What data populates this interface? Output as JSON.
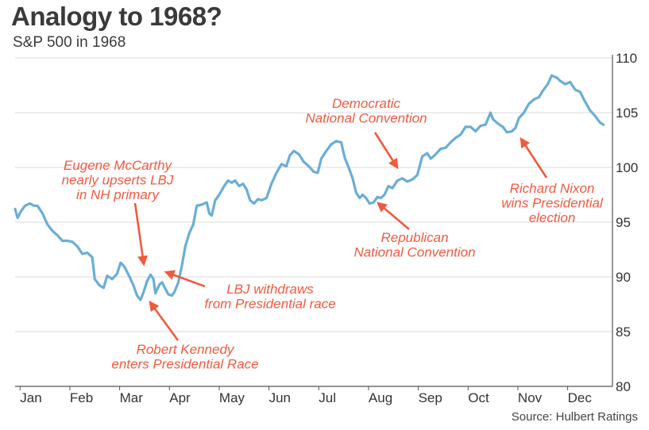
{
  "title": "Analogy to 1968?",
  "subtitle": "S&P 500 in 1968",
  "source": "Source: Hulbert Ratings",
  "colors": {
    "line": "#6aaed6",
    "annotation": "#f15a3d",
    "grid": "#d9d9d9"
  },
  "chart_data": {
    "type": "line",
    "title": "Analogy to 1968?",
    "subtitle": "S&P 500 in 1968",
    "xlabel": "",
    "ylabel": "",
    "ylim": [
      80,
      110
    ],
    "yticks": [
      80,
      85,
      90,
      95,
      100,
      105,
      110
    ],
    "xlim": [
      0,
      12
    ],
    "xticks": [
      {
        "v": 0.1,
        "label": "Jan"
      },
      {
        "v": 1.1,
        "label": "Feb"
      },
      {
        "v": 2.1,
        "label": "Mar"
      },
      {
        "v": 3.1,
        "label": "Apr"
      },
      {
        "v": 4.1,
        "label": "May"
      },
      {
        "v": 5.1,
        "label": "Jun"
      },
      {
        "v": 6.1,
        "label": "Jul"
      },
      {
        "v": 7.1,
        "label": "Aug"
      },
      {
        "v": 8.1,
        "label": "Sep"
      },
      {
        "v": 9.1,
        "label": "Oct"
      },
      {
        "v": 10.1,
        "label": "Nov"
      },
      {
        "v": 11.1,
        "label": "Dec"
      }
    ],
    "grid": true,
    "axis_side": "right",
    "series": [
      {
        "points": [
          [
            0.0,
            96.2
          ],
          [
            0.05,
            95.4
          ],
          [
            0.12,
            96.0
          ],
          [
            0.2,
            96.5
          ],
          [
            0.3,
            96.7
          ],
          [
            0.38,
            96.5
          ],
          [
            0.45,
            96.5
          ],
          [
            0.55,
            95.8
          ],
          [
            0.65,
            94.8
          ],
          [
            0.75,
            94.2
          ],
          [
            0.85,
            93.8
          ],
          [
            0.95,
            93.3
          ],
          [
            1.05,
            93.3
          ],
          [
            1.15,
            93.2
          ],
          [
            1.25,
            92.8
          ],
          [
            1.35,
            92.1
          ],
          [
            1.45,
            92.2
          ],
          [
            1.55,
            91.8
          ],
          [
            1.6,
            89.8
          ],
          [
            1.7,
            89.2
          ],
          [
            1.78,
            89.0
          ],
          [
            1.85,
            90.1
          ],
          [
            1.95,
            89.8
          ],
          [
            2.05,
            90.3
          ],
          [
            2.12,
            91.3
          ],
          [
            2.2,
            90.9
          ],
          [
            2.3,
            90.0
          ],
          [
            2.38,
            89.2
          ],
          [
            2.45,
            88.3
          ],
          [
            2.52,
            87.9
          ],
          [
            2.58,
            88.6
          ],
          [
            2.65,
            89.6
          ],
          [
            2.72,
            90.2
          ],
          [
            2.78,
            89.8
          ],
          [
            2.82,
            88.5
          ],
          [
            2.9,
            89.3
          ],
          [
            2.95,
            89.5
          ],
          [
            3.02,
            88.9
          ],
          [
            3.08,
            88.4
          ],
          [
            3.15,
            88.3
          ],
          [
            3.2,
            88.6
          ],
          [
            3.28,
            89.5
          ],
          [
            3.35,
            91.0
          ],
          [
            3.42,
            92.8
          ],
          [
            3.5,
            94.0
          ],
          [
            3.58,
            94.8
          ],
          [
            3.65,
            96.5
          ],
          [
            3.75,
            96.6
          ],
          [
            3.85,
            96.8
          ],
          [
            3.9,
            95.8
          ],
          [
            3.95,
            95.6
          ],
          [
            4.02,
            97.0
          ],
          [
            4.1,
            97.5
          ],
          [
            4.2,
            98.3
          ],
          [
            4.28,
            98.8
          ],
          [
            4.35,
            98.6
          ],
          [
            4.42,
            98.8
          ],
          [
            4.5,
            98.3
          ],
          [
            4.58,
            98.5
          ],
          [
            4.65,
            98.0
          ],
          [
            4.72,
            97.0
          ],
          [
            4.8,
            96.7
          ],
          [
            4.88,
            97.1
          ],
          [
            4.95,
            97.0
          ],
          [
            5.05,
            97.2
          ],
          [
            5.15,
            98.5
          ],
          [
            5.25,
            99.5
          ],
          [
            5.35,
            100.3
          ],
          [
            5.45,
            100.1
          ],
          [
            5.52,
            101.1
          ],
          [
            5.6,
            101.5
          ],
          [
            5.7,
            101.2
          ],
          [
            5.8,
            100.5
          ],
          [
            5.9,
            100.1
          ],
          [
            6.0,
            99.6
          ],
          [
            6.08,
            99.5
          ],
          [
            6.15,
            100.8
          ],
          [
            6.25,
            101.5
          ],
          [
            6.35,
            102.1
          ],
          [
            6.45,
            102.4
          ],
          [
            6.55,
            102.3
          ],
          [
            6.62,
            100.9
          ],
          [
            6.7,
            100.0
          ],
          [
            6.78,
            99.0
          ],
          [
            6.85,
            97.7
          ],
          [
            6.92,
            97.2
          ],
          [
            6.98,
            97.5
          ],
          [
            7.05,
            97.2
          ],
          [
            7.12,
            96.7
          ],
          [
            7.2,
            96.8
          ],
          [
            7.28,
            97.3
          ],
          [
            7.35,
            97.2
          ],
          [
            7.42,
            97.5
          ],
          [
            7.5,
            98.3
          ],
          [
            7.58,
            98.1
          ],
          [
            7.68,
            98.8
          ],
          [
            7.78,
            99.0
          ],
          [
            7.88,
            98.7
          ],
          [
            7.98,
            98.9
          ],
          [
            8.08,
            99.3
          ],
          [
            8.18,
            101.0
          ],
          [
            8.28,
            101.3
          ],
          [
            8.35,
            100.8
          ],
          [
            8.45,
            101.2
          ],
          [
            8.55,
            101.7
          ],
          [
            8.65,
            101.8
          ],
          [
            8.75,
            102.3
          ],
          [
            8.85,
            102.7
          ],
          [
            8.95,
            103.0
          ],
          [
            9.05,
            103.7
          ],
          [
            9.15,
            103.7
          ],
          [
            9.25,
            103.3
          ],
          [
            9.35,
            103.8
          ],
          [
            9.45,
            103.9
          ],
          [
            9.55,
            105.0
          ],
          [
            9.6,
            104.4
          ],
          [
            9.7,
            104.0
          ],
          [
            9.8,
            103.7
          ],
          [
            9.88,
            103.2
          ],
          [
            9.98,
            103.3
          ],
          [
            10.05,
            103.6
          ],
          [
            10.12,
            104.5
          ],
          [
            10.22,
            105.0
          ],
          [
            10.32,
            105.8
          ],
          [
            10.42,
            106.2
          ],
          [
            10.52,
            106.4
          ],
          [
            10.6,
            107.0
          ],
          [
            10.7,
            107.6
          ],
          [
            10.78,
            108.4
          ],
          [
            10.88,
            108.2
          ],
          [
            10.95,
            107.9
          ],
          [
            11.05,
            107.6
          ],
          [
            11.15,
            107.8
          ],
          [
            11.25,
            107.1
          ],
          [
            11.35,
            106.9
          ],
          [
            11.45,
            106.0
          ],
          [
            11.55,
            105.2
          ],
          [
            11.65,
            104.7
          ],
          [
            11.75,
            104.1
          ],
          [
            11.82,
            103.9
          ]
        ]
      }
    ],
    "annotations": [
      {
        "lines": [
          "Eugene McCarthy",
          "nearly upserts LBJ",
          "in NH primary"
        ]
      },
      {
        "lines": [
          "LBJ withdraws",
          "from Presidential race"
        ]
      },
      {
        "lines": [
          "Robert Kennedy",
          "enters Presidential Race"
        ]
      },
      {
        "lines": [
          "Democratic",
          "National Convention"
        ]
      },
      {
        "lines": [
          "Republican",
          "National Convention"
        ]
      },
      {
        "lines": [
          "Richard Nixon",
          "wins Presidential",
          "election"
        ]
      }
    ]
  }
}
